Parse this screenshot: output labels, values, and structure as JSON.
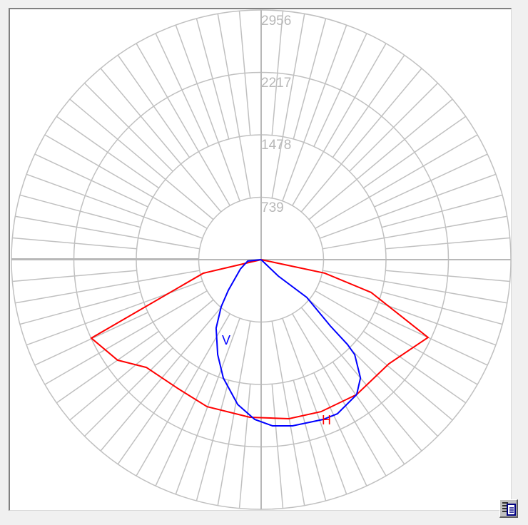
{
  "chart_data": {
    "type": "polar",
    "ring_values": [
      "739",
      "1478",
      "2217",
      "2956"
    ],
    "r_max": 2956,
    "grid": true,
    "angle_convention": "degrees from nadir, negative = left",
    "series": [
      {
        "name": "H",
        "color": "#ff0000",
        "points": [
          [
            -90,
            0
          ],
          [
            -76.8,
            703
          ],
          [
            -65.2,
            2214
          ],
          [
            -55,
            2074
          ],
          [
            -46.8,
            1864
          ],
          [
            -32.7,
            1816
          ],
          [
            -20.2,
            1855
          ],
          [
            -4.1,
            1871
          ],
          [
            9.9,
            1912
          ],
          [
            21.5,
            1934
          ],
          [
            35.3,
            1957
          ],
          [
            50.8,
            1951
          ],
          [
            65,
            2180
          ],
          [
            73.4,
            1357
          ],
          [
            78,
            769
          ],
          [
            90,
            0
          ]
        ]
      },
      {
        "name": "V",
        "color": "#0000ff",
        "points": [
          [
            -90,
            0
          ],
          [
            -84,
            160
          ],
          [
            -65.9,
            268
          ],
          [
            -46.9,
            532
          ],
          [
            -40.3,
            731
          ],
          [
            -33.3,
            970
          ],
          [
            -24.6,
            1236
          ],
          [
            -17.7,
            1472
          ],
          [
            -9.2,
            1737
          ],
          [
            -2.3,
            1893
          ],
          [
            3.9,
            1972
          ],
          [
            10.7,
            2003
          ],
          [
            21.2,
            2029
          ],
          [
            26.3,
            2036
          ],
          [
            35.3,
            1957
          ],
          [
            40,
            1829
          ],
          [
            44.6,
            1577
          ],
          [
            45.5,
            1433
          ],
          [
            46.2,
            1135
          ],
          [
            50.4,
            702
          ],
          [
            46.2,
            281
          ],
          [
            90,
            0
          ]
        ]
      }
    ]
  },
  "legend_button": {
    "icon": "list-document-icon"
  }
}
